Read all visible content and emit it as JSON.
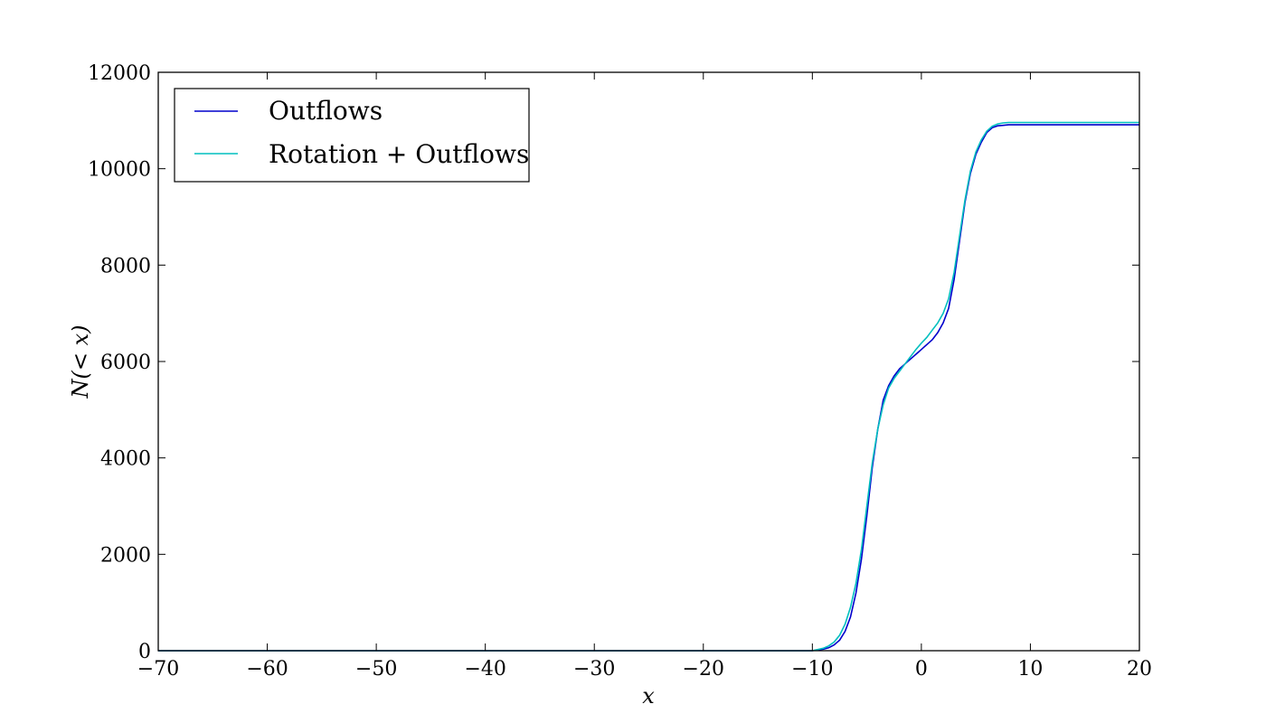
{
  "chart_data": {
    "type": "line",
    "title": "",
    "xlabel": "x",
    "ylabel": "N(< x)",
    "xlim": [
      -70,
      20
    ],
    "ylim": [
      0,
      12000
    ],
    "xticks": [
      -70,
      -60,
      -50,
      -40,
      -30,
      -20,
      -10,
      0,
      10,
      20
    ],
    "xtick_labels": [
      "−70",
      "−60",
      "−50",
      "−40",
      "−30",
      "−20",
      "−10",
      "0",
      "10",
      "20"
    ],
    "yticks": [
      0,
      2000,
      4000,
      6000,
      8000,
      10000,
      12000
    ],
    "ytick_labels": [
      "0",
      "2000",
      "4000",
      "6000",
      "8000",
      "10000",
      "12000"
    ],
    "grid": false,
    "legend_position": "top-left",
    "series": [
      {
        "name": "Outflows",
        "color": "#0000cc",
        "x": [
          -70,
          -20,
          -10,
          -9,
          -8.5,
          -8,
          -7.5,
          -7,
          -6.5,
          -6,
          -5.5,
          -5,
          -4.5,
          -4,
          -3.5,
          -3,
          -2.5,
          -2,
          -1.5,
          -1,
          -0.5,
          0,
          0.5,
          1,
          1.5,
          2,
          2.5,
          3,
          3.5,
          4,
          4.5,
          5,
          5.5,
          6,
          6.5,
          7,
          7.5,
          8,
          9,
          10,
          12,
          20
        ],
        "y": [
          0,
          0,
          0,
          30,
          60,
          120,
          220,
          400,
          700,
          1200,
          1900,
          2800,
          3800,
          4600,
          5200,
          5500,
          5700,
          5850,
          5950,
          6050,
          6150,
          6250,
          6350,
          6450,
          6600,
          6800,
          7100,
          7700,
          8500,
          9300,
          9900,
          10300,
          10550,
          10750,
          10850,
          10890,
          10900,
          10910,
          10910,
          10910,
          10910,
          10910
        ]
      },
      {
        "name": "Rotation + Outflows",
        "color": "#00bfbf",
        "x": [
          -70,
          -20,
          -10,
          -9,
          -8.5,
          -8,
          -7.5,
          -7,
          -6.5,
          -6,
          -5.5,
          -5,
          -4.5,
          -4,
          -3.5,
          -3,
          -2.5,
          -2,
          -1.5,
          -1,
          -0.5,
          0,
          0.5,
          1,
          1.5,
          2,
          2.5,
          3,
          3.5,
          4,
          4.5,
          5,
          5.5,
          6,
          6.5,
          7,
          7.5,
          8,
          9,
          10,
          12,
          20
        ],
        "y": [
          0,
          0,
          0,
          50,
          100,
          180,
          320,
          550,
          900,
          1400,
          2100,
          3000,
          3900,
          4600,
          5100,
          5450,
          5650,
          5800,
          5950,
          6100,
          6250,
          6380,
          6500,
          6650,
          6800,
          7000,
          7300,
          7850,
          8600,
          9350,
          9950,
          10350,
          10600,
          10780,
          10880,
          10930,
          10950,
          10960,
          10960,
          10960,
          10960,
          10960
        ]
      }
    ]
  }
}
